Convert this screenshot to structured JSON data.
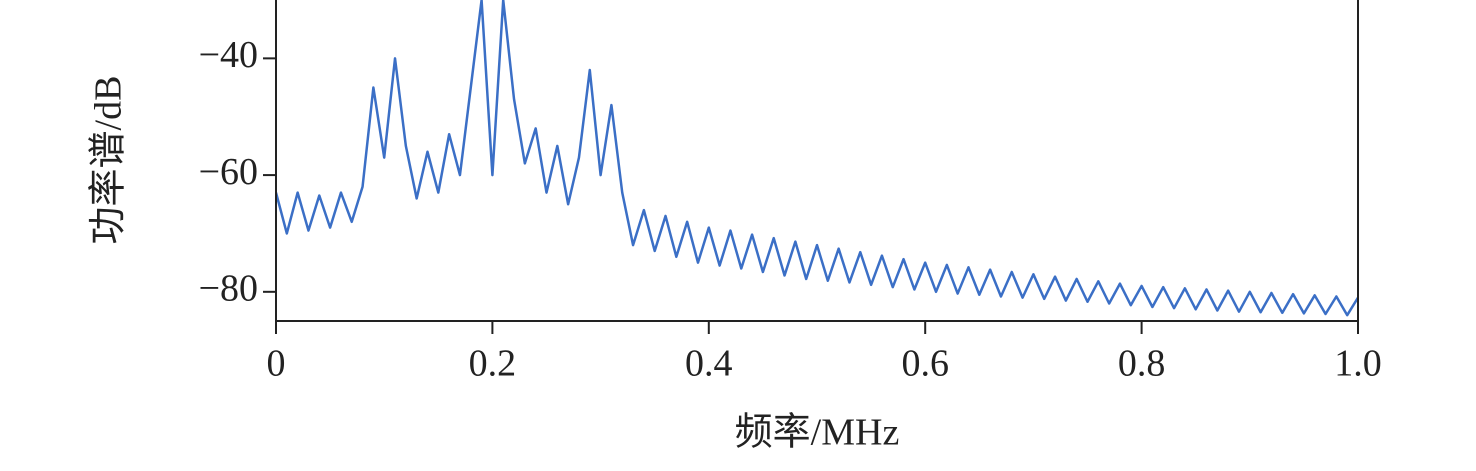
{
  "chart_data": {
    "type": "line",
    "x_label": "频率/MHz",
    "y_label": "功率谱/dB",
    "xlim": [
      0,
      1
    ],
    "ylim": [
      -85,
      -30
    ],
    "xticks": [
      0,
      0.2,
      0.4,
      0.6,
      0.8,
      {
        "value": 1,
        "label": "1.0"
      }
    ],
    "yticks": [
      {
        "value": -40,
        "label": "−40"
      },
      {
        "value": -60,
        "label": "−60"
      },
      {
        "value": -80,
        "label": "−80"
      }
    ],
    "grid": false,
    "x": [
      0,
      0.01,
      0.02,
      0.03,
      0.04,
      0.05,
      0.06,
      0.07,
      0.08,
      0.09,
      0.1,
      0.11,
      0.12,
      0.13,
      0.14,
      0.15,
      0.16,
      0.17,
      0.18,
      0.19,
      0.2,
      0.21,
      0.22,
      0.23,
      0.24,
      0.25,
      0.26,
      0.27,
      0.28,
      0.29,
      0.3,
      0.31,
      0.32,
      0.33,
      0.34,
      0.35,
      0.36,
      0.37,
      0.38,
      0.39,
      0.4,
      0.41,
      0.42,
      0.43,
      0.44,
      0.45,
      0.46,
      0.47,
      0.48,
      0.49,
      0.5,
      0.51,
      0.52,
      0.53,
      0.54,
      0.55,
      0.56,
      0.57,
      0.58,
      0.59,
      0.6,
      0.61,
      0.62,
      0.63,
      0.64,
      0.65,
      0.66,
      0.67,
      0.68,
      0.69,
      0.7,
      0.71,
      0.72,
      0.73,
      0.74,
      0.75,
      0.76,
      0.77,
      0.78,
      0.79,
      0.8,
      0.81,
      0.82,
      0.83,
      0.84,
      0.85,
      0.86,
      0.87,
      0.88,
      0.89,
      0.9,
      0.91,
      0.92,
      0.93,
      0.94,
      0.95,
      0.96,
      0.97,
      0.98,
      0.99,
      1
    ],
    "series": [
      {
        "color": "#3b6fc6",
        "values": [
          -63,
          -70,
          -63,
          -69.5,
          -63.5,
          -69,
          -63,
          -68,
          -62,
          -45,
          -57,
          -40,
          -55,
          -64,
          -56,
          -63,
          -53,
          -60,
          -45,
          -30,
          -60,
          -30,
          -47,
          -58,
          -52,
          -63,
          -55,
          -65,
          -57,
          -42,
          -60,
          -48,
          -63,
          -72,
          -66,
          -73,
          -67,
          -74,
          -68,
          -75,
          -69,
          -75.5,
          -69.5,
          -76,
          -70.2,
          -76.6,
          -70.8,
          -77.2,
          -71.4,
          -77.8,
          -72,
          -78.1,
          -72.6,
          -78.4,
          -73.2,
          -78.8,
          -73.8,
          -79.2,
          -74.4,
          -79.6,
          -75,
          -80,
          -75.4,
          -80.3,
          -75.8,
          -80.5,
          -76.2,
          -80.8,
          -76.6,
          -81,
          -77,
          -81.2,
          -77.4,
          -81.5,
          -77.8,
          -81.7,
          -78.2,
          -82,
          -78.6,
          -82.3,
          -79,
          -82.6,
          -79.2,
          -82.8,
          -79.4,
          -83,
          -79.6,
          -83.2,
          -79.8,
          -83.4,
          -80,
          -83.5,
          -80.2,
          -83.6,
          -80.4,
          -83.7,
          -80.6,
          -83.8,
          -80.8,
          -84,
          -81
        ]
      }
    ]
  }
}
